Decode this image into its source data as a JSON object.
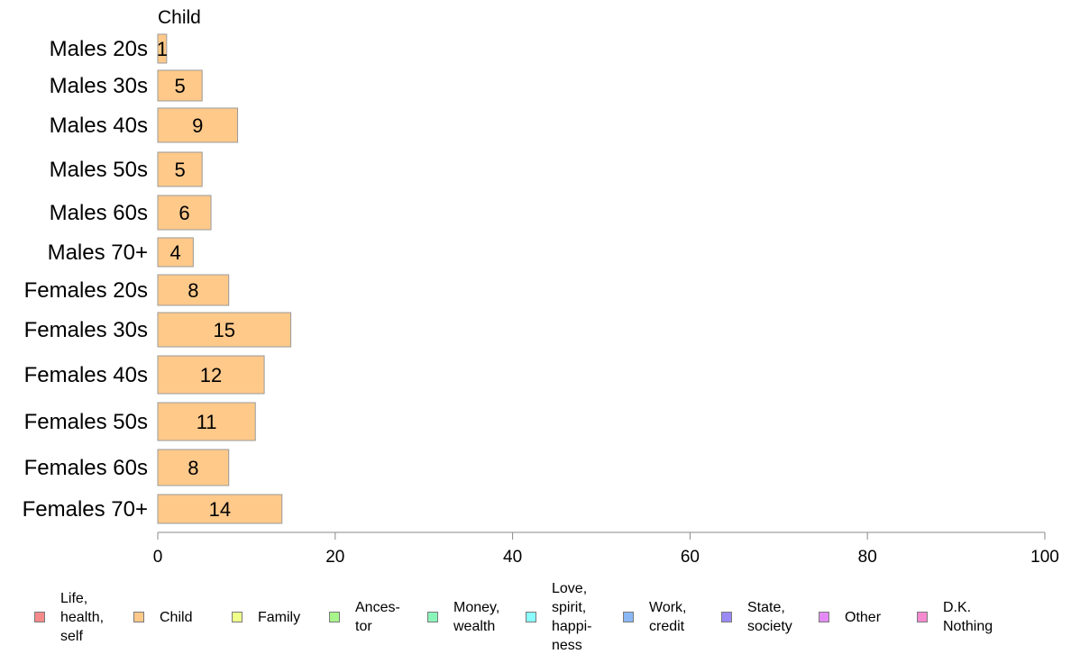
{
  "chart_data": {
    "type": "bar",
    "orientation": "horizontal",
    "panel_title": "Child",
    "categories": [
      "Males 20s",
      "Males 30s",
      "Males 40s",
      "Males 50s",
      "Males 60s",
      "Males 70+",
      "Females 20s",
      "Females 30s",
      "Females 40s",
      "Females 50s",
      "Females 60s",
      "Females 70+"
    ],
    "series": [
      {
        "name": "Child",
        "values": [
          1,
          5,
          9,
          5,
          6,
          4,
          8,
          15,
          12,
          11,
          8,
          14
        ],
        "color": "#ffc98a"
      }
    ],
    "xlim": [
      0,
      100
    ],
    "xticks": [
      0,
      20,
      40,
      60,
      80,
      100
    ],
    "grid": false,
    "legend_position": "bottom"
  },
  "legend": {
    "items": [
      {
        "label": "Life,\nhealth,\nself",
        "color": "#f58a8a"
      },
      {
        "label": "Child",
        "color": "#ffc98a"
      },
      {
        "label": "Family",
        "color": "#eeff8a"
      },
      {
        "label": "Ances-\ntor",
        "color": "#a7f58a"
      },
      {
        "label": "Money,\nwealth",
        "color": "#8af5b9"
      },
      {
        "label": "Love,\nspirit,\nhappi-\nness",
        "color": "#8afcfc"
      },
      {
        "label": "Work,\ncredit",
        "color": "#8ab8f5"
      },
      {
        "label": "State,\nsociety",
        "color": "#9a8af5"
      },
      {
        "label": "Other",
        "color": "#e58af5"
      },
      {
        "label": "D.K.\nNothing",
        "color": "#f58ad0"
      }
    ]
  }
}
